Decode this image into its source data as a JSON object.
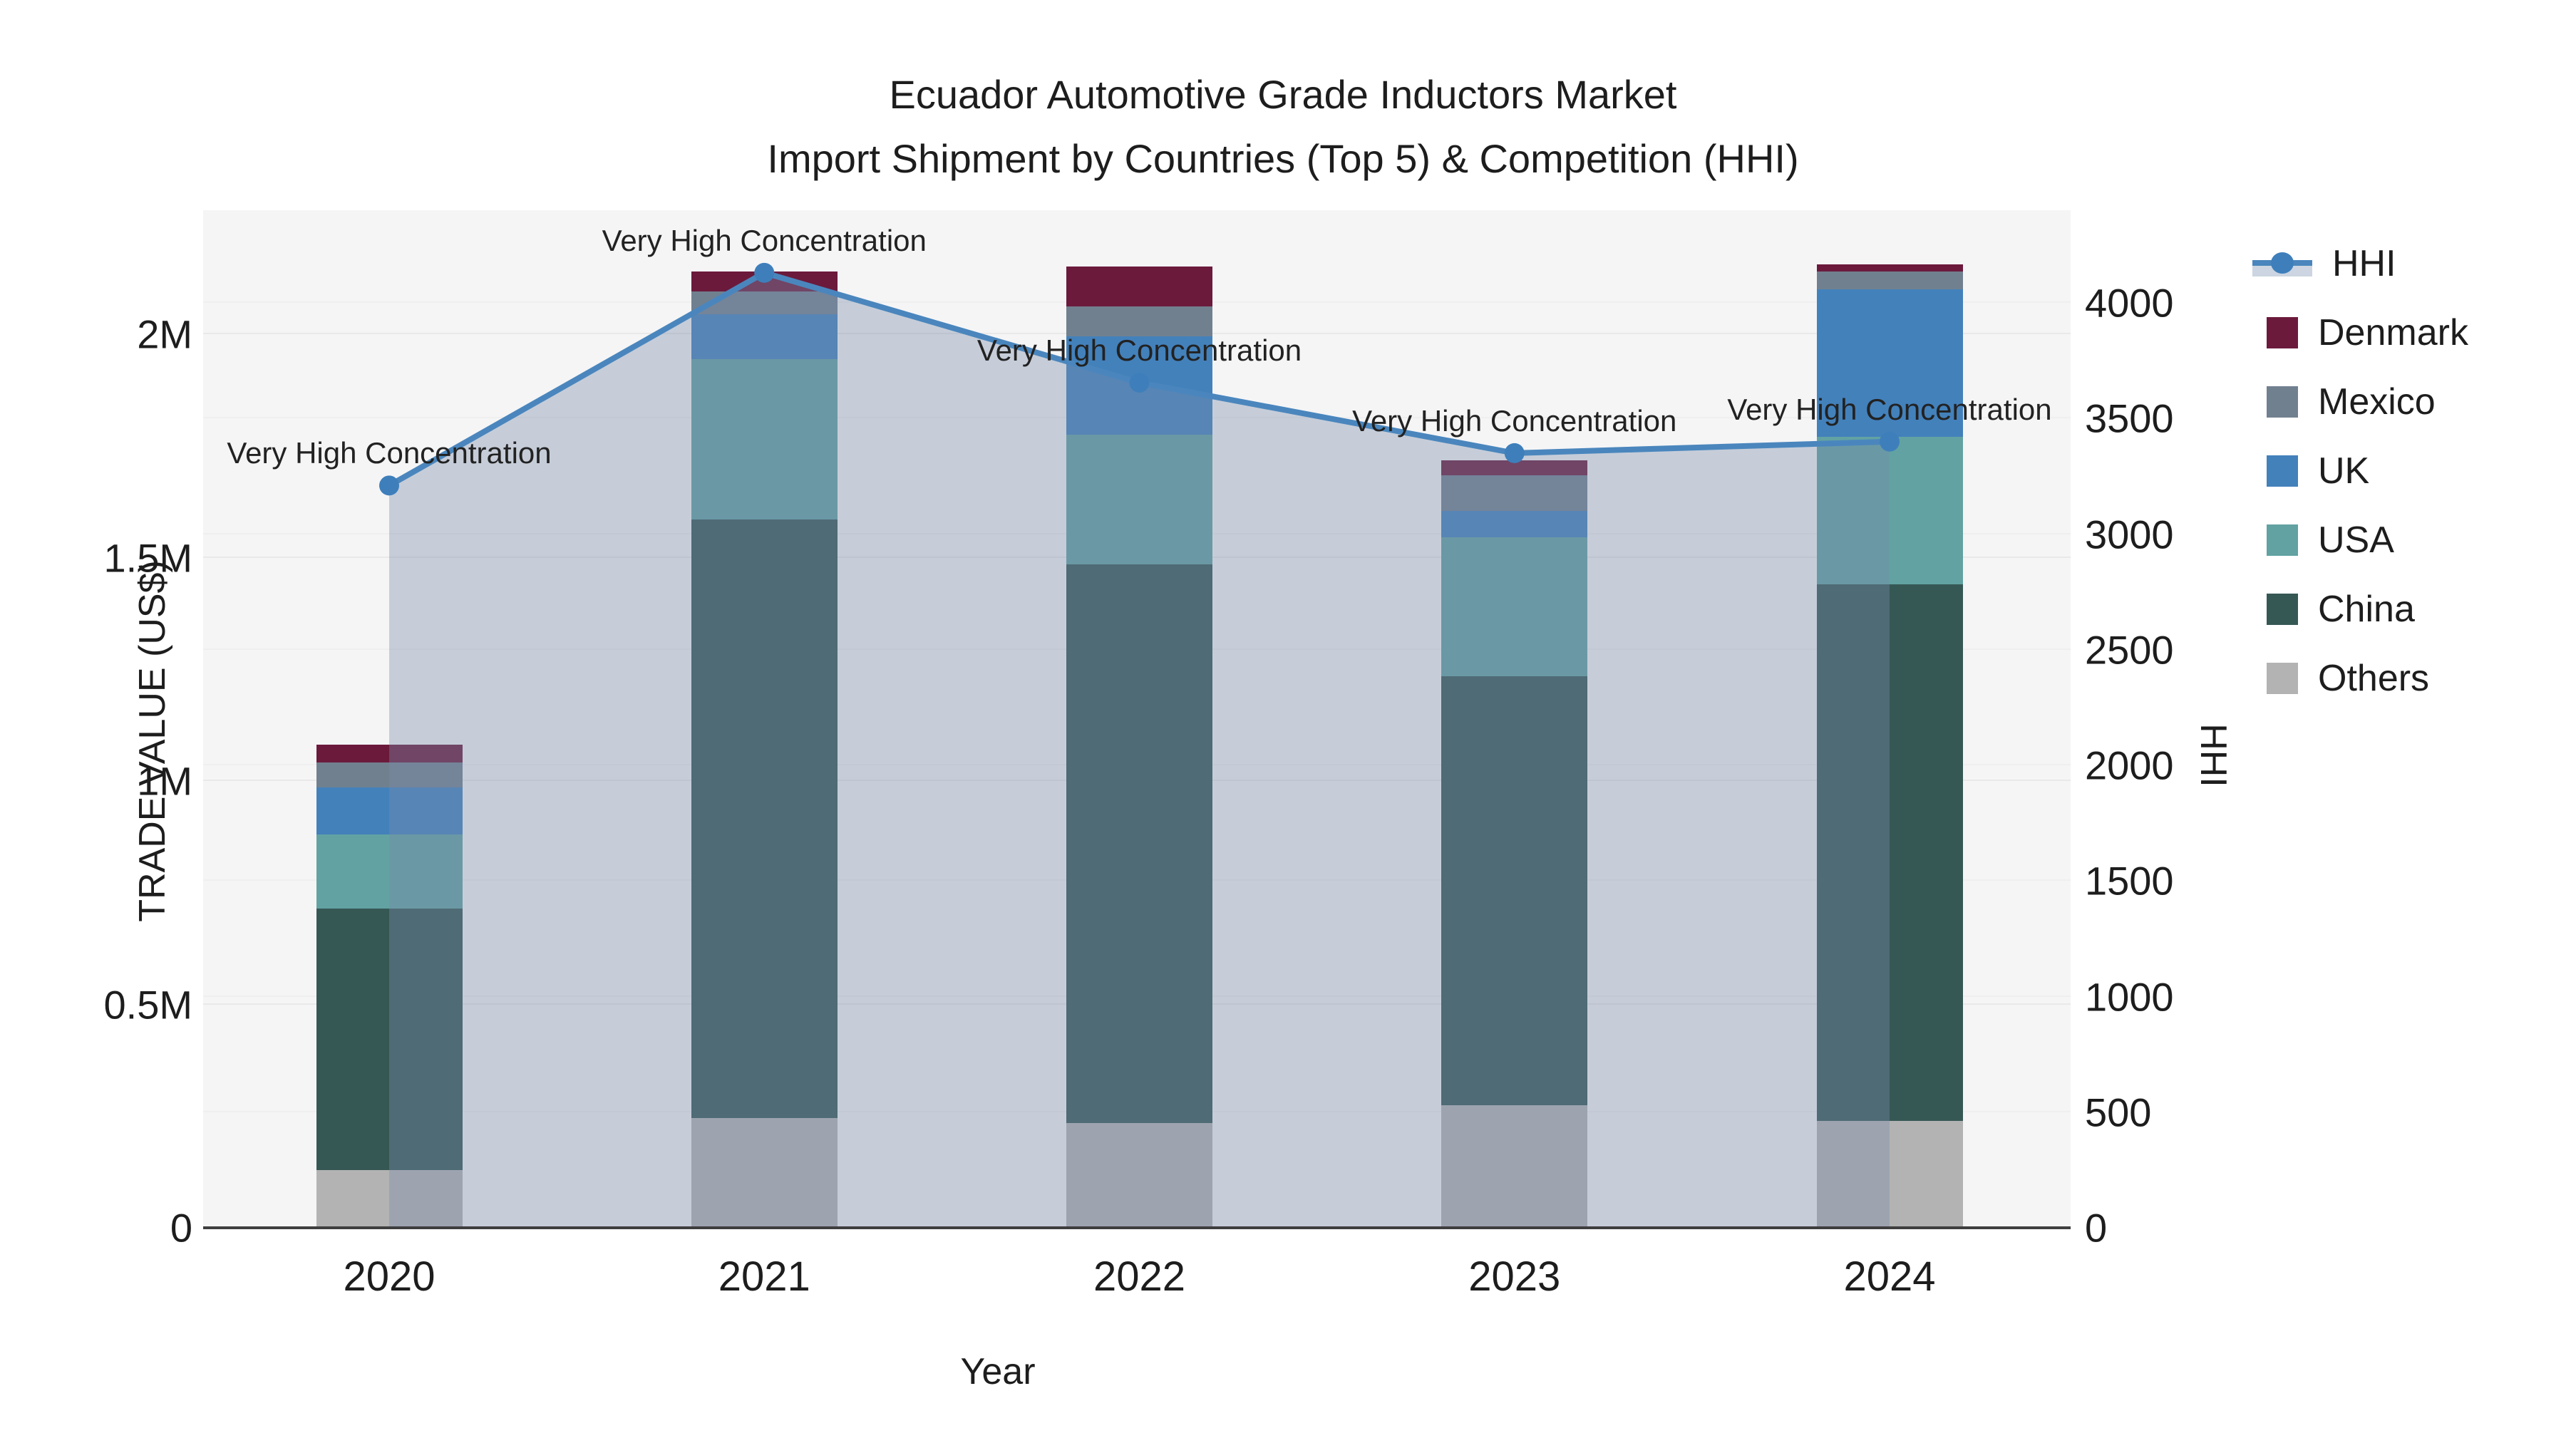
{
  "title": {
    "line1": "Ecuador Automotive Grade Inductors Market",
    "line2": "Import Shipment by Countries (Top 5) & Competition (HHI)"
  },
  "axes": {
    "x": {
      "title": "Year",
      "categories": [
        "2020",
        "2021",
        "2022",
        "2023",
        "2024"
      ]
    },
    "y_left": {
      "title": "TRADE VALUE (US$)",
      "ticks": [
        "0",
        "0.5M",
        "1M",
        "1.5M",
        "2M"
      ]
    },
    "y_right": {
      "title": "HHI",
      "ticks": [
        "0",
        "500",
        "1000",
        "1500",
        "2000",
        "2500",
        "3000",
        "3500",
        "4000"
      ]
    }
  },
  "legend": {
    "items": [
      {
        "label": "HHI",
        "type": "line",
        "color": "#4a86bd"
      },
      {
        "label": "Denmark",
        "type": "swatch",
        "color": "#6b1a3c"
      },
      {
        "label": "Mexico",
        "type": "swatch",
        "color": "#71808f"
      },
      {
        "label": "UK",
        "type": "swatch",
        "color": "#4381bb"
      },
      {
        "label": "USA",
        "type": "swatch",
        "color": "#62a2a2"
      },
      {
        "label": "China",
        "type": "swatch",
        "color": "#365855"
      },
      {
        "label": "Others",
        "type": "swatch",
        "color": "#b3b3b3"
      }
    ]
  },
  "chart_data": {
    "type": "bar+line",
    "title": "Ecuador Automotive Grade Inductors Market — Import Shipment by Countries (Top 5) & Competition (HHI)",
    "xlabel": "Year",
    "ylabel_left": "TRADE VALUE (US$)",
    "ylabel_right": "HHI",
    "categories": [
      "2020",
      "2021",
      "2022",
      "2023",
      "2024"
    ],
    "stack_order_bottom_to_top": [
      "Others",
      "China",
      "USA",
      "UK",
      "Mexico",
      "Denmark"
    ],
    "bar_series": [
      {
        "name": "Others",
        "color": "#b3b3b3",
        "values": [
          130000,
          245000,
          235000,
          275000,
          240000
        ]
      },
      {
        "name": "China",
        "color": "#365855",
        "values": [
          585000,
          1340000,
          1250000,
          960000,
          1200000
        ]
      },
      {
        "name": "USA",
        "color": "#62a2a2",
        "values": [
          165000,
          360000,
          290000,
          310000,
          330000
        ]
      },
      {
        "name": "UK",
        "color": "#4381bb",
        "values": [
          105000,
          100000,
          220000,
          60000,
          330000
        ]
      },
      {
        "name": "Mexico",
        "color": "#71808f",
        "values": [
          57000,
          50000,
          68000,
          80000,
          40000
        ]
      },
      {
        "name": "Denmark",
        "color": "#6b1a3c",
        "values": [
          40000,
          45000,
          88000,
          33000,
          16000
        ]
      }
    ],
    "bar_totals": [
      1082000,
      2140000,
      2151000,
      1718000,
      2156000
    ],
    "line_series": {
      "name": "HHI",
      "values": [
        3210,
        4130,
        3655,
        3350,
        3400
      ],
      "color": "#4a86bd",
      "marker_color": "#3e7fbb",
      "area_fill": "rgba(120,140,170,0.38)"
    },
    "annotations": [
      {
        "text": "Very High Concentration",
        "category": "2020"
      },
      {
        "text": "Very High Concentration",
        "category": "2021"
      },
      {
        "text": "Very High Concentration",
        "category": "2022"
      },
      {
        "text": "Very High Concentration",
        "category": "2023"
      },
      {
        "text": "Very High Concentration",
        "category": "2024"
      }
    ],
    "axis_ranges": {
      "y_left_max_value": 2277000,
      "y_right_max_value": 4401
    },
    "grid": true,
    "legend_position": "right",
    "plot_bg": "#f5f5f6"
  }
}
